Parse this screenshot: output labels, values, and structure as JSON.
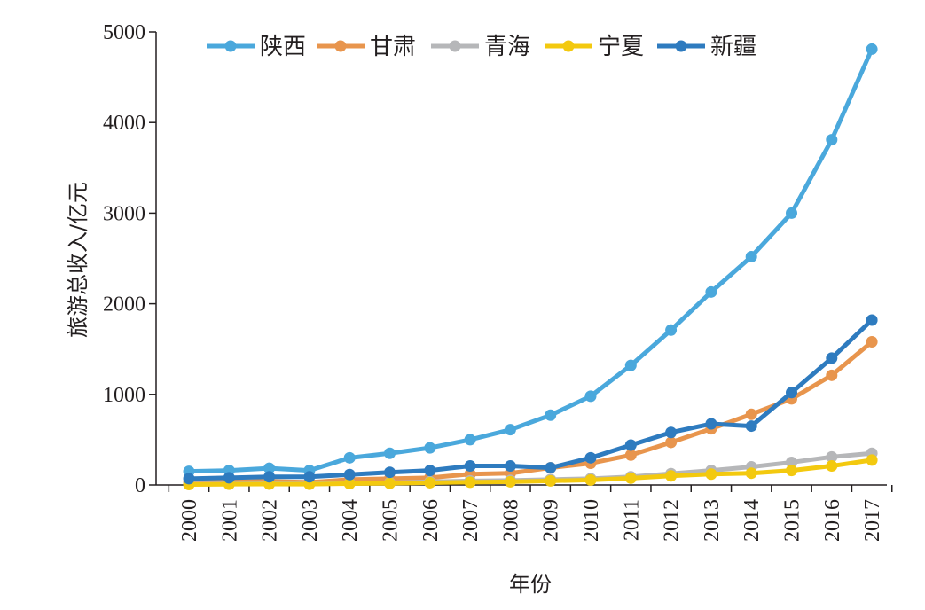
{
  "chart_data": {
    "type": "line",
    "title": "",
    "xlabel": "年份",
    "ylabel": "旅游总收入/亿元",
    "ylim": [
      0,
      5000
    ],
    "yticks": [
      0,
      1000,
      2000,
      3000,
      4000,
      5000
    ],
    "grid": false,
    "legend_position": "top",
    "categories": [
      "2000",
      "2001",
      "2002",
      "2003",
      "2004",
      "2005",
      "2006",
      "2007",
      "2008",
      "2009",
      "2010",
      "2011",
      "2012",
      "2013",
      "2014",
      "2015",
      "2016",
      "2017"
    ],
    "series": [
      {
        "name": "陕西",
        "color": "#4aa8dc",
        "values": [
          150,
          160,
          185,
          160,
          300,
          350,
          410,
          500,
          610,
          770,
          980,
          1320,
          1710,
          2130,
          2520,
          3000,
          3810,
          4810
        ]
      },
      {
        "name": "甘肃",
        "color": "#e8954d",
        "values": [
          30,
          35,
          40,
          30,
          60,
          70,
          80,
          120,
          130,
          190,
          240,
          330,
          470,
          620,
          780,
          950,
          1210,
          1580
        ]
      },
      {
        "name": "青海",
        "color": "#b6b7b9",
        "values": [
          10,
          12,
          15,
          12,
          20,
          25,
          35,
          45,
          50,
          60,
          70,
          90,
          125,
          160,
          200,
          250,
          310,
          350
        ]
      },
      {
        "name": "宁夏",
        "color": "#f3c90f",
        "values": [
          5,
          8,
          10,
          8,
          15,
          18,
          25,
          30,
          35,
          45,
          55,
          75,
          100,
          120,
          130,
          160,
          210,
          275
        ]
      },
      {
        "name": "新疆",
        "color": "#2e7bbf",
        "values": [
          70,
          80,
          90,
          90,
          115,
          140,
          160,
          210,
          210,
          190,
          300,
          440,
          580,
          675,
          650,
          1020,
          1400,
          1820
        ]
      }
    ]
  }
}
